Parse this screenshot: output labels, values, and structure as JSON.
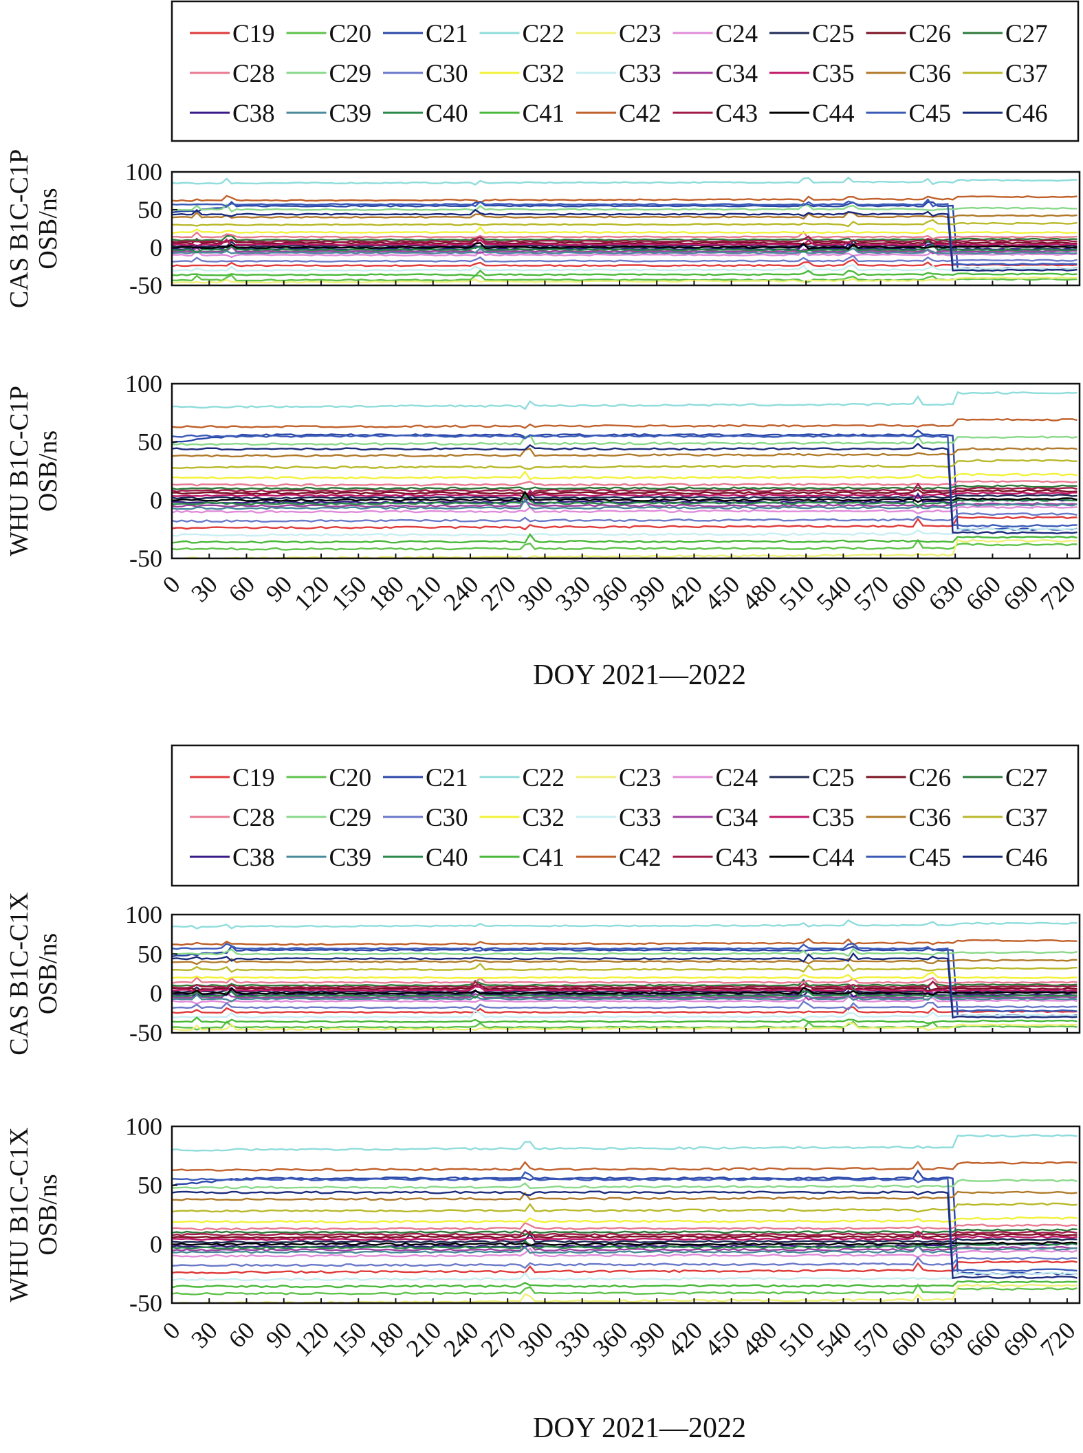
{
  "figure": {
    "blocks": [
      {
        "legend_key": "legend",
        "panels": [
          {
            "ylabel_line1": "CAS B1C-C1P",
            "ylabel_line2": "OSB/ns"
          },
          {
            "ylabel_line1": "WHU B1C-C1P",
            "ylabel_line2": "OSB/ns"
          }
        ],
        "xlabel": "DOY 2021—2022"
      },
      {
        "legend_key": "legend",
        "panels": [
          {
            "ylabel_line1": "CAS B1C-C1X",
            "ylabel_line2": "OSB/ns"
          },
          {
            "ylabel_line1": "WHU B1C-C1X",
            "ylabel_line2": "OSB/ns"
          }
        ],
        "xlabel": "DOY 2021—2022"
      }
    ],
    "legend": [
      {
        "name": "C19",
        "color": "#e03a3a"
      },
      {
        "name": "C20",
        "color": "#5ec24a"
      },
      {
        "name": "C21",
        "color": "#2a47a8"
      },
      {
        "name": "C22",
        "color": "#8fdcdc"
      },
      {
        "name": "C23",
        "color": "#f0f07a"
      },
      {
        "name": "C24",
        "color": "#e08ad8"
      },
      {
        "name": "C25",
        "color": "#1f2a55"
      },
      {
        "name": "C26",
        "color": "#7a1020"
      },
      {
        "name": "C27",
        "color": "#2e7a3a"
      },
      {
        "name": "C28",
        "color": "#e87a90"
      },
      {
        "name": "C29",
        "color": "#8ad88a"
      },
      {
        "name": "C30",
        "color": "#6a78c8"
      },
      {
        "name": "C32",
        "color": "#f2f23a"
      },
      {
        "name": "C33",
        "color": "#c8eef2"
      },
      {
        "name": "C34",
        "color": "#a040a0"
      },
      {
        "name": "C35",
        "color": "#c0186a"
      },
      {
        "name": "C36",
        "color": "#b07a2a"
      },
      {
        "name": "C37",
        "color": "#b8b82a"
      },
      {
        "name": "C38",
        "color": "#3a1a88"
      },
      {
        "name": "C39",
        "color": "#4a8a9a"
      },
      {
        "name": "C40",
        "color": "#2a8a4a"
      },
      {
        "name": "C41",
        "color": "#4ab83a"
      },
      {
        "name": "C42",
        "color": "#c0602a"
      },
      {
        "name": "C43",
        "color": "#a01a4a"
      },
      {
        "name": "C44",
        "color": "#000000"
      },
      {
        "name": "C45",
        "color": "#3a5ab8"
      },
      {
        "name": "C46",
        "color": "#1a2a7a"
      }
    ]
  },
  "chart_data": [
    {
      "type": "line",
      "panel": "CAS B1C-C1P",
      "xlabel": "DOY 2021—2022",
      "ylabel": "CAS B1C-C1P OSB/ns",
      "xlim": [
        0,
        730
      ],
      "ylim": [
        -50,
        100
      ],
      "xticks": [
        0,
        30,
        60,
        90,
        120,
        150,
        180,
        210,
        240,
        270,
        300,
        330,
        360,
        390,
        420,
        450,
        480,
        510,
        540,
        570,
        600,
        630,
        660,
        690,
        720
      ],
      "yticks": [
        100,
        50,
        0,
        -50
      ],
      "series": [
        {
          "name": "C19",
          "values": [
            -24,
            -23
          ]
        },
        {
          "name": "C20",
          "values": [
            -43,
            -42
          ]
        },
        {
          "name": "C21",
          "values": [
            47,
            55,
            55,
            -28
          ]
        },
        {
          "name": "C22",
          "values": [
            85,
            89
          ]
        },
        {
          "name": "C23",
          "values": [
            -46,
            -40
          ]
        },
        {
          "name": "C24",
          "values": [
            -10,
            -9
          ]
        },
        {
          "name": "C25",
          "values": [
            2,
            2
          ]
        },
        {
          "name": "C26",
          "values": [
            6,
            6
          ]
        },
        {
          "name": "C27",
          "values": [
            10,
            11
          ]
        },
        {
          "name": "C28",
          "values": [
            14,
            14
          ]
        },
        {
          "name": "C29",
          "values": [
            50,
            52
          ]
        },
        {
          "name": "C30",
          "values": [
            -18,
            -17
          ]
        },
        {
          "name": "C32",
          "values": [
            20,
            20
          ]
        },
        {
          "name": "C33",
          "values": [
            -30,
            -28
          ]
        },
        {
          "name": "C34",
          "values": [
            -5,
            -5
          ]
        },
        {
          "name": "C35",
          "values": [
            4,
            4
          ]
        },
        {
          "name": "C36",
          "values": [
            40,
            42
          ]
        },
        {
          "name": "C37",
          "values": [
            30,
            32
          ]
        },
        {
          "name": "C38",
          "values": [
            -2,
            -2
          ]
        },
        {
          "name": "C39",
          "values": [
            -7,
            -7
          ]
        },
        {
          "name": "C40",
          "values": [
            -3,
            -3
          ]
        },
        {
          "name": "C41",
          "values": [
            -36,
            -35
          ]
        },
        {
          "name": "C42",
          "values": [
            62,
            67
          ]
        },
        {
          "name": "C43",
          "values": [
            8,
            9
          ]
        },
        {
          "name": "C44",
          "values": [
            0,
            1
          ]
        },
        {
          "name": "C45",
          "values": [
            57,
            -22
          ]
        },
        {
          "name": "C46",
          "values": [
            44,
            -30
          ]
        }
      ]
    },
    {
      "type": "line",
      "panel": "WHU B1C-C1P",
      "xlabel": "DOY 2021—2022",
      "ylabel": "WHU B1C-C1P OSB/ns",
      "xlim": [
        0,
        730
      ],
      "ylim": [
        -50,
        100
      ],
      "xticks": [
        0,
        30,
        60,
        90,
        120,
        150,
        180,
        210,
        240,
        270,
        300,
        330,
        360,
        390,
        420,
        450,
        480,
        510,
        540,
        570,
        600,
        630,
        660,
        690,
        720
      ],
      "yticks": [
        100,
        50,
        0,
        -50
      ],
      "series": [
        {
          "name": "C19",
          "values": [
            -24,
            -15
          ]
        },
        {
          "name": "C20",
          "values": [
            -42,
            -38
          ]
        },
        {
          "name": "C21",
          "values": [
            50,
            56,
            -25
          ]
        },
        {
          "name": "C22",
          "values": [
            80,
            92
          ]
        },
        {
          "name": "C23",
          "values": [
            -50,
            -35
          ]
        },
        {
          "name": "C24",
          "values": [
            -10,
            -6
          ]
        },
        {
          "name": "C25",
          "values": [
            2,
            4
          ]
        },
        {
          "name": "C26",
          "values": [
            6,
            8
          ]
        },
        {
          "name": "C27",
          "values": [
            10,
            12
          ]
        },
        {
          "name": "C28",
          "values": [
            13,
            16
          ]
        },
        {
          "name": "C29",
          "values": [
            48,
            54
          ]
        },
        {
          "name": "C30",
          "values": [
            -18,
            -12
          ]
        },
        {
          "name": "C32",
          "values": [
            19,
            22
          ]
        },
        {
          "name": "C33",
          "values": [
            -30,
            -25
          ]
        },
        {
          "name": "C34",
          "values": [
            -5,
            -3
          ]
        },
        {
          "name": "C35",
          "values": [
            4,
            6
          ]
        },
        {
          "name": "C36",
          "values": [
            38,
            44
          ]
        },
        {
          "name": "C37",
          "values": [
            28,
            34
          ]
        },
        {
          "name": "C38",
          "values": [
            -2,
            0
          ]
        },
        {
          "name": "C39",
          "values": [
            -7,
            -4
          ]
        },
        {
          "name": "C40",
          "values": [
            -3,
            0
          ]
        },
        {
          "name": "C41",
          "values": [
            -36,
            -32
          ]
        },
        {
          "name": "C42",
          "values": [
            63,
            69
          ]
        },
        {
          "name": "C43",
          "values": [
            8,
            10
          ]
        },
        {
          "name": "C44",
          "values": [
            0,
            1
          ]
        },
        {
          "name": "C45",
          "values": [
            55,
            -22
          ]
        },
        {
          "name": "C46",
          "values": [
            44,
            -28
          ]
        }
      ]
    },
    {
      "type": "line",
      "panel": "CAS B1C-C1X",
      "xlabel": "DOY 2021—2022",
      "ylabel": "CAS B1C-C1X OSB/ns",
      "xlim": [
        0,
        730
      ],
      "ylim": [
        -50,
        100
      ],
      "xticks": [
        0,
        30,
        60,
        90,
        120,
        150,
        180,
        210,
        240,
        270,
        300,
        330,
        360,
        390,
        420,
        450,
        480,
        510,
        540,
        570,
        600,
        630,
        660,
        690,
        720
      ],
      "yticks": [
        100,
        50,
        0,
        -50
      ],
      "series": [
        {
          "name": "C19",
          "values": [
            -24,
            -23
          ]
        },
        {
          "name": "C20",
          "values": [
            -43,
            -42
          ]
        },
        {
          "name": "C21",
          "values": [
            47,
            55,
            -28
          ]
        },
        {
          "name": "C22",
          "values": [
            85,
            89
          ]
        },
        {
          "name": "C23",
          "values": [
            -46,
            -40
          ]
        },
        {
          "name": "C24",
          "values": [
            -10,
            -9
          ]
        },
        {
          "name": "C25",
          "values": [
            2,
            2
          ]
        },
        {
          "name": "C26",
          "values": [
            6,
            6
          ]
        },
        {
          "name": "C27",
          "values": [
            10,
            11
          ]
        },
        {
          "name": "C28",
          "values": [
            14,
            14
          ]
        },
        {
          "name": "C29",
          "values": [
            50,
            52
          ]
        },
        {
          "name": "C30",
          "values": [
            -18,
            -17
          ]
        },
        {
          "name": "C32",
          "values": [
            20,
            20
          ]
        },
        {
          "name": "C33",
          "values": [
            -30,
            -28
          ]
        },
        {
          "name": "C34",
          "values": [
            -5,
            -5
          ]
        },
        {
          "name": "C35",
          "values": [
            4,
            4
          ]
        },
        {
          "name": "C36",
          "values": [
            40,
            42
          ]
        },
        {
          "name": "C37",
          "values": [
            30,
            32
          ]
        },
        {
          "name": "C38",
          "values": [
            -2,
            -2
          ]
        },
        {
          "name": "C39",
          "values": [
            -7,
            -7
          ]
        },
        {
          "name": "C40",
          "values": [
            -3,
            -3
          ]
        },
        {
          "name": "C41",
          "values": [
            -36,
            -35
          ]
        },
        {
          "name": "C42",
          "values": [
            62,
            67
          ]
        },
        {
          "name": "C43",
          "values": [
            8,
            9
          ]
        },
        {
          "name": "C44",
          "values": [
            0,
            1
          ]
        },
        {
          "name": "C45",
          "values": [
            57,
            -22
          ]
        },
        {
          "name": "C46",
          "values": [
            44,
            -30
          ]
        }
      ]
    },
    {
      "type": "line",
      "panel": "WHU B1C-C1X",
      "xlabel": "DOY 2021—2022",
      "ylabel": "WHU B1C-C1X OSB/ns",
      "xlim": [
        0,
        730
      ],
      "ylim": [
        -50,
        100
      ],
      "xticks": [
        0,
        30,
        60,
        90,
        120,
        150,
        180,
        210,
        240,
        270,
        300,
        330,
        360,
        390,
        420,
        450,
        480,
        510,
        540,
        570,
        600,
        630,
        660,
        690,
        720
      ],
      "yticks": [
        100,
        50,
        0,
        -50
      ],
      "series": [
        {
          "name": "C19",
          "values": [
            -24,
            -15
          ]
        },
        {
          "name": "C20",
          "values": [
            -42,
            -38
          ]
        },
        {
          "name": "C21",
          "values": [
            50,
            56,
            -25
          ]
        },
        {
          "name": "C22",
          "values": [
            80,
            92
          ]
        },
        {
          "name": "C23",
          "values": [
            -50,
            -35
          ]
        },
        {
          "name": "C24",
          "values": [
            -10,
            -6
          ]
        },
        {
          "name": "C25",
          "values": [
            2,
            4
          ]
        },
        {
          "name": "C26",
          "values": [
            6,
            8
          ]
        },
        {
          "name": "C27",
          "values": [
            10,
            12
          ]
        },
        {
          "name": "C28",
          "values": [
            13,
            16
          ]
        },
        {
          "name": "C29",
          "values": [
            48,
            54
          ]
        },
        {
          "name": "C30",
          "values": [
            -18,
            -12
          ]
        },
        {
          "name": "C32",
          "values": [
            19,
            22
          ]
        },
        {
          "name": "C33",
          "values": [
            -30,
            -25
          ]
        },
        {
          "name": "C34",
          "values": [
            -5,
            -3
          ]
        },
        {
          "name": "C35",
          "values": [
            4,
            6
          ]
        },
        {
          "name": "C36",
          "values": [
            38,
            44
          ]
        },
        {
          "name": "C37",
          "values": [
            28,
            34
          ]
        },
        {
          "name": "C38",
          "values": [
            -2,
            0
          ]
        },
        {
          "name": "C39",
          "values": [
            -7,
            -4
          ]
        },
        {
          "name": "C40",
          "values": [
            -3,
            0
          ]
        },
        {
          "name": "C41",
          "values": [
            -36,
            -32
          ]
        },
        {
          "name": "C42",
          "values": [
            63,
            69
          ]
        },
        {
          "name": "C43",
          "values": [
            8,
            10
          ]
        },
        {
          "name": "C44",
          "values": [
            0,
            1
          ]
        },
        {
          "name": "C45",
          "values": [
            55,
            -22
          ]
        },
        {
          "name": "C46",
          "values": [
            44,
            -28
          ]
        }
      ]
    }
  ]
}
